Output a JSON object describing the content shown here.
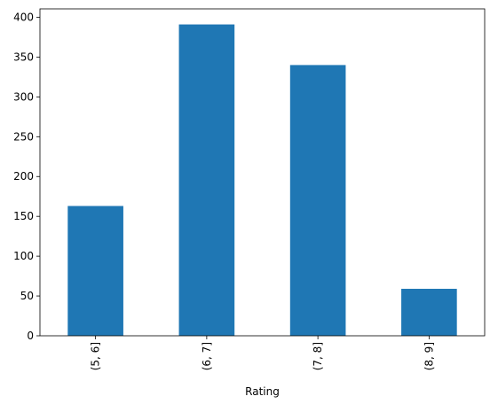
{
  "chart_data": {
    "type": "bar",
    "categories": [
      "(5, 6]",
      "(6, 7]",
      "(7, 8]",
      "(8, 9]"
    ],
    "values": [
      163,
      391,
      340,
      59
    ],
    "title": "",
    "xlabel": "Rating",
    "ylabel": "",
    "ylim": [
      0,
      410.55
    ],
    "yticks": [
      0,
      50,
      100,
      150,
      200,
      250,
      300,
      350,
      400
    ],
    "grid": false,
    "legend": "none",
    "bar_color": "#1f77b4"
  }
}
